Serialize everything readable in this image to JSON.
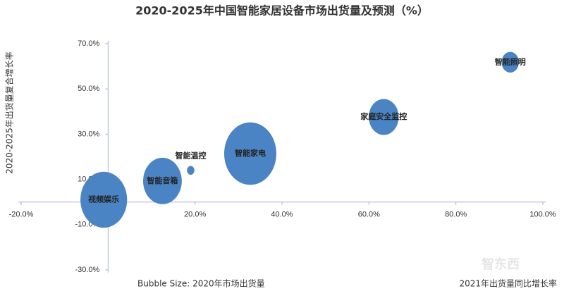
{
  "chart_data": {
    "type": "bubble",
    "title": "2020-2025年中国智能家居设备市场出货量及预测（%）",
    "xlabel": "2021年出货量同比增长率",
    "ylabel": "2020-2025年出货量复合增长率",
    "size_note": "Bubble Size: 2020年市场出货量",
    "watermark": "智东西",
    "color": "#4a84c4",
    "axis_color": "#a8aee0",
    "xlim": [
      -20,
      100
    ],
    "ylim": [
      -30,
      70
    ],
    "xticks": [
      {
        "value": -20,
        "label": "-20.0%"
      },
      {
        "value": 0,
        "label": "0.0%"
      },
      {
        "value": 20,
        "label": "20.0%"
      },
      {
        "value": 40,
        "label": "40.0%"
      },
      {
        "value": 60,
        "label": "60.0%"
      },
      {
        "value": 80,
        "label": "80.0%"
      },
      {
        "value": 100,
        "label": "100.0%"
      }
    ],
    "yticks": [
      {
        "value": -30,
        "label": "-30.0%"
      },
      {
        "value": -10,
        "label": "-10.0%"
      },
      {
        "value": 10,
        "label": "10.0%"
      },
      {
        "value": 30,
        "label": "30.0%"
      },
      {
        "value": 50,
        "label": "50.0%"
      },
      {
        "value": 70,
        "label": "70.0%"
      }
    ],
    "points": [
      {
        "label": "视频娱乐",
        "x": -1,
        "y": 1,
        "size": 80
      },
      {
        "label": "智能音箱",
        "x": 12.5,
        "y": 9.3,
        "size": 55
      },
      {
        "label": "智能温控",
        "x": 19,
        "y": 14,
        "size": 2
      },
      {
        "label": "智能家电",
        "x": 32.7,
        "y": 21.4,
        "size": 100
      },
      {
        "label": "家庭安全监控",
        "x": 63.4,
        "y": 37.6,
        "size": 33
      },
      {
        "label": "智能照明",
        "x": 92.5,
        "y": 61.8,
        "size": 11
      }
    ]
  }
}
